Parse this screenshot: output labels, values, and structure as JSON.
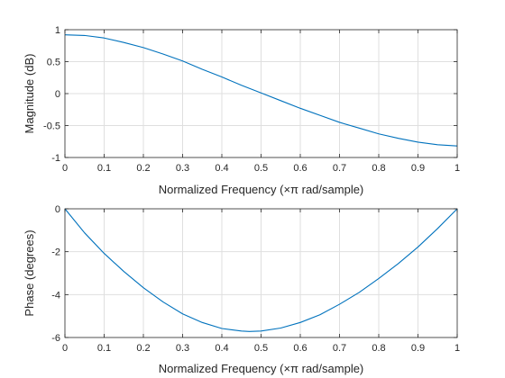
{
  "chart_data": [
    {
      "type": "line",
      "xlabel": "Normalized Frequency  (×π rad/sample)",
      "ylabel": "Magnitude (dB)",
      "xlim": [
        0,
        1
      ],
      "ylim": [
        -1,
        1
      ],
      "xticks": [
        0,
        0.1,
        0.2,
        0.3,
        0.4,
        0.5,
        0.6,
        0.7,
        0.8,
        0.9,
        1
      ],
      "xtick_labels": [
        "0",
        "0.1",
        "0.2",
        "0.3",
        "0.4",
        "0.5",
        "0.6",
        "0.7",
        "0.8",
        "0.9",
        "1"
      ],
      "yticks": [
        -1,
        -0.5,
        0,
        0.5,
        1
      ],
      "ytick_labels": [
        "-1",
        "-0.5",
        "0",
        "0.5",
        "1"
      ],
      "grid": true,
      "line_color": "#0072bd",
      "series": [
        {
          "x": [
            0,
            0.05,
            0.1,
            0.15,
            0.2,
            0.25,
            0.3,
            0.35,
            0.4,
            0.45,
            0.5,
            0.55,
            0.6,
            0.65,
            0.7,
            0.75,
            0.8,
            0.85,
            0.9,
            0.95,
            1
          ],
          "values": [
            0.92,
            0.91,
            0.87,
            0.8,
            0.72,
            0.62,
            0.51,
            0.38,
            0.26,
            0.13,
            0.01,
            -0.11,
            -0.23,
            -0.34,
            -0.45,
            -0.54,
            -0.63,
            -0.7,
            -0.76,
            -0.8,
            -0.82
          ]
        }
      ]
    },
    {
      "type": "line",
      "xlabel": "Normalized Frequency  (×π rad/sample)",
      "ylabel": "Phase (degrees)",
      "xlim": [
        0,
        1
      ],
      "ylim": [
        -6,
        0
      ],
      "xticks": [
        0,
        0.1,
        0.2,
        0.3,
        0.4,
        0.5,
        0.6,
        0.7,
        0.8,
        0.9,
        1
      ],
      "xtick_labels": [
        "0",
        "0.1",
        "0.2",
        "0.3",
        "0.4",
        "0.5",
        "0.6",
        "0.7",
        "0.8",
        "0.9",
        "1"
      ],
      "yticks": [
        -6,
        -4,
        -2,
        0
      ],
      "ytick_labels": [
        "-6",
        "-4",
        "-2",
        "0"
      ],
      "grid": true,
      "line_color": "#0072bd",
      "series": [
        {
          "x": [
            0,
            0.05,
            0.1,
            0.15,
            0.2,
            0.25,
            0.3,
            0.35,
            0.4,
            0.45,
            0.47,
            0.5,
            0.55,
            0.6,
            0.65,
            0.7,
            0.75,
            0.8,
            0.85,
            0.9,
            0.95,
            1
          ],
          "values": [
            0,
            -1.12,
            -2.08,
            -2.92,
            -3.68,
            -4.34,
            -4.9,
            -5.3,
            -5.58,
            -5.7,
            -5.72,
            -5.7,
            -5.56,
            -5.3,
            -4.94,
            -4.45,
            -3.9,
            -3.25,
            -2.55,
            -1.78,
            -0.92,
            0
          ]
        }
      ]
    }
  ]
}
